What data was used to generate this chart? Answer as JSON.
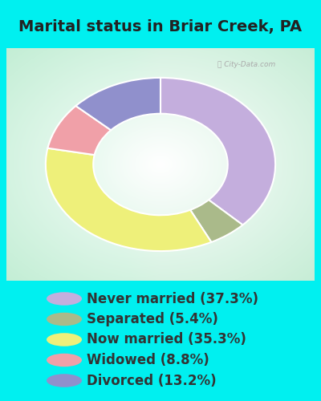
{
  "title": "Marital status in Briar Creek, PA",
  "slices": [
    37.3,
    5.4,
    35.3,
    8.8,
    13.2
  ],
  "labels": [
    "Never married (37.3%)",
    "Separated (5.4%)",
    "Now married (35.3%)",
    "Widowed (8.8%)",
    "Divorced (13.2%)"
  ],
  "colors": [
    "#c4aedd",
    "#aaba8a",
    "#eef07a",
    "#f0a0a8",
    "#9090cc"
  ],
  "outer_bg": "#00f0f0",
  "chart_bg_center": "#ffffff",
  "chart_bg_edge_tl": "#c8e8d8",
  "chart_bg_edge_br": "#d8edd8",
  "title_fontsize": 14,
  "legend_fontsize": 12,
  "donut_outer_r": 0.82,
  "donut_width": 0.34,
  "start_angle": 90,
  "title_color": "#222222",
  "legend_text_color": "#333333"
}
